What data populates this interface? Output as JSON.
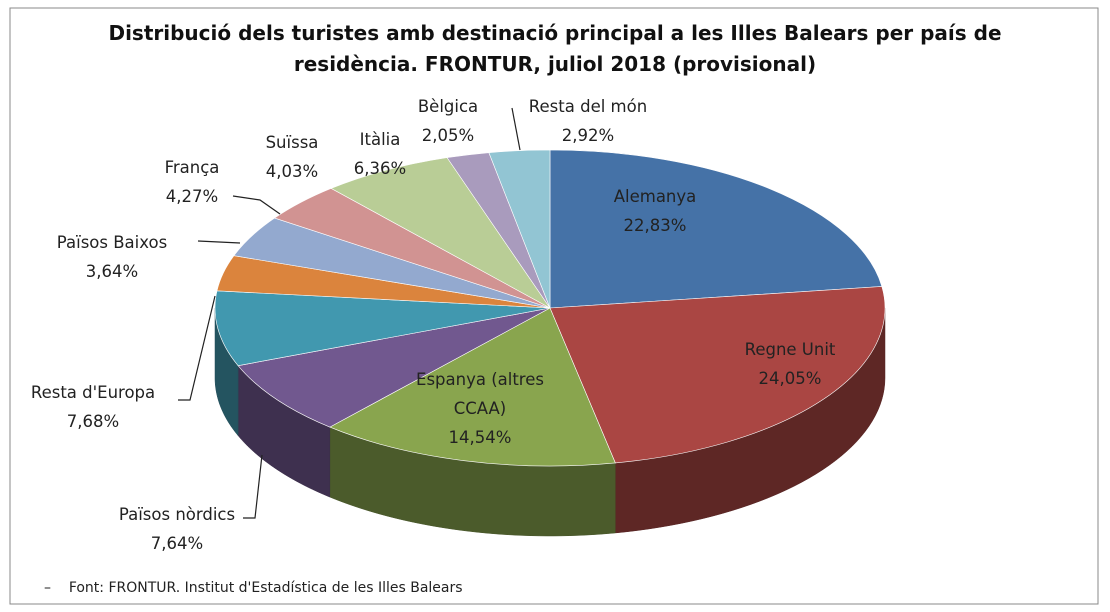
{
  "chart_data": {
    "type": "pie3d",
    "title": "Distribució dels turistes amb destinació principal a les Illes Balears per país de residència. FRONTUR, juliol 2018 (provisional)",
    "categories": [
      "Alemanya",
      "Regne Unit",
      "Espanya (altres CCAA)",
      "Països nòrdics",
      "Resta d'Europa",
      "Països Baixos",
      "França",
      "Suïssa",
      "Itàlia",
      "Bèlgica",
      "Resta del món"
    ],
    "values": [
      22.83,
      24.05,
      14.54,
      7.64,
      7.68,
      3.64,
      4.27,
      4.03,
      6.36,
      2.05,
      2.92
    ],
    "value_labels": [
      "22,83%",
      "24,05%",
      "14,54%",
      "7,64%",
      "7,68%",
      "3,64%",
      "4,27%",
      "4,03%",
      "6,36%",
      "2,05%",
      "2,92%"
    ],
    "colors": [
      "#4572a7",
      "#aa4643",
      "#89a54e",
      "#71588f",
      "#4198af",
      "#db843d",
      "#93a9cf",
      "#d19392",
      "#b9cd96",
      "#a99bbd",
      "#92c5d3"
    ],
    "source": "Font: FRONTUR. Institut d'Estadística de les Illes Balears"
  }
}
